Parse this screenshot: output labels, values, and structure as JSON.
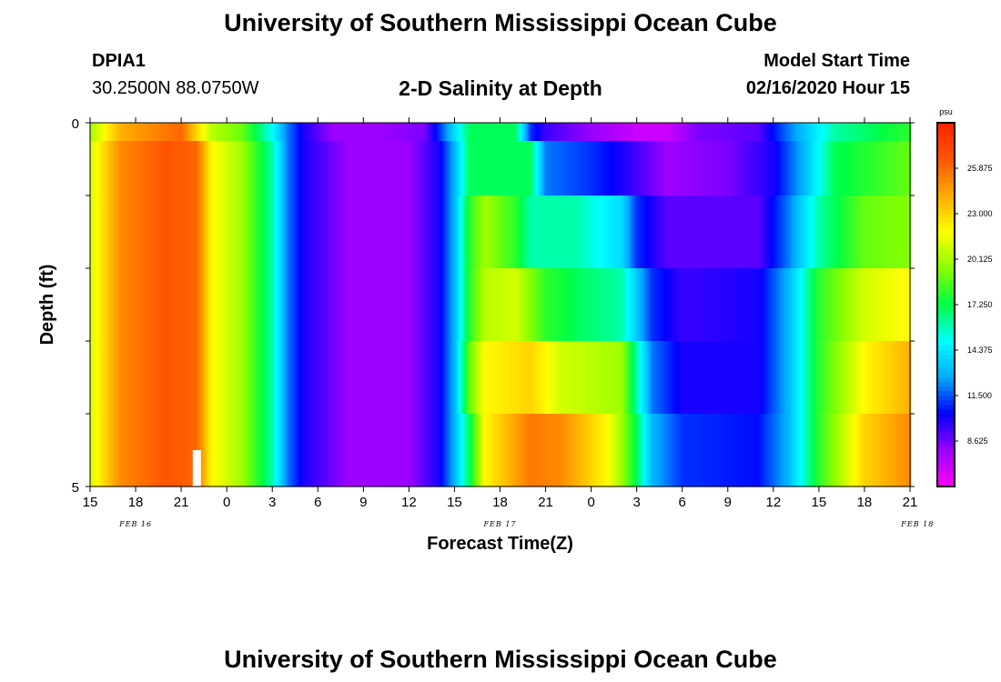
{
  "header": {
    "title": "University of Southern Mississippi Ocean Cube",
    "station_id": "DPIA1",
    "coords": "30.2500N 88.0750W",
    "chart_title": "2-D Salinity at Depth",
    "model_label": "Model Start Time",
    "model_time": "02/16/2020 Hour 15"
  },
  "footer": {
    "title": "University of Southern Mississippi Ocean Cube"
  },
  "chart_data": {
    "type": "heatmap",
    "xlabel": "Forecast Time(Z)",
    "ylabel": "Depth (ft)",
    "x_tick_labels": [
      "15",
      "18",
      "21",
      "0",
      "3",
      "6",
      "9",
      "12",
      "15",
      "18",
      "21",
      "0",
      "3",
      "6",
      "9",
      "12",
      "15",
      "18",
      "21"
    ],
    "date_labels": [
      "FEB 16",
      "FEB 17",
      "FEB 18"
    ],
    "y_tick_labels": [
      "0",
      "5"
    ],
    "ylim": [
      0,
      5
    ],
    "x_hours": [
      0,
      54
    ],
    "current_time_hour": 7,
    "colorbar": {
      "unit": "psu",
      "range": [
        5.75,
        28.75
      ],
      "tick_labels": [
        "25.875",
        "23.000",
        "20.125",
        "17.250",
        "14.375",
        "11.500",
        "8.625"
      ],
      "colors": [
        "#ff00ff",
        "#9b00ff",
        "#0000ff",
        "#00aaff",
        "#00ffff",
        "#00ff44",
        "#88ff00",
        "#ffff00",
        "#ffaa00",
        "#ff5500",
        "#ff2200"
      ]
    },
    "depth_levels": [
      0,
      0.5,
      1.5,
      2.5,
      3.5,
      4.5
    ],
    "series": [
      {
        "depth": 0,
        "keys": [
          [
            0,
            20
          ],
          [
            1,
            22
          ],
          [
            2,
            24
          ],
          [
            4,
            25
          ],
          [
            6,
            26
          ],
          [
            7,
            23
          ],
          [
            8,
            20.5
          ],
          [
            10,
            19
          ],
          [
            12,
            15
          ],
          [
            13,
            12
          ],
          [
            14,
            10
          ],
          [
            16,
            8
          ],
          [
            19,
            8
          ],
          [
            22,
            8.5
          ],
          [
            23,
            11
          ],
          [
            24,
            14
          ],
          [
            25,
            17
          ],
          [
            28,
            17
          ],
          [
            29,
            11
          ],
          [
            30,
            9.5
          ],
          [
            32,
            8.5
          ],
          [
            36,
            7
          ],
          [
            38,
            7
          ],
          [
            40,
            8.5
          ],
          [
            44,
            9
          ],
          [
            46,
            12
          ],
          [
            49,
            16
          ],
          [
            54,
            18
          ]
        ]
      },
      {
        "depth": 0.5,
        "keys": [
          [
            0,
            21
          ],
          [
            1,
            23
          ],
          [
            2,
            25
          ],
          [
            5,
            26.5
          ],
          [
            7,
            26
          ],
          [
            8,
            22
          ],
          [
            10,
            20
          ],
          [
            12,
            16
          ],
          [
            13,
            12
          ],
          [
            14,
            10
          ],
          [
            17,
            8
          ],
          [
            21,
            8
          ],
          [
            23,
            10
          ],
          [
            24,
            13
          ],
          [
            25,
            17
          ],
          [
            29,
            17
          ],
          [
            30,
            12
          ],
          [
            33,
            11
          ],
          [
            35,
            10
          ],
          [
            38,
            8
          ],
          [
            42,
            8.5
          ],
          [
            45,
            10
          ],
          [
            47,
            13
          ],
          [
            49,
            17
          ],
          [
            54,
            19
          ]
        ]
      },
      {
        "depth": 1.5,
        "keys": [
          [
            0,
            21
          ],
          [
            1,
            23
          ],
          [
            2,
            25
          ],
          [
            5,
            26.5
          ],
          [
            7,
            26
          ],
          [
            8,
            22
          ],
          [
            10,
            20
          ],
          [
            12,
            16
          ],
          [
            13,
            12
          ],
          [
            14,
            10
          ],
          [
            17,
            8
          ],
          [
            21,
            8
          ],
          [
            23,
            10
          ],
          [
            24,
            13
          ],
          [
            25,
            18
          ],
          [
            26,
            20
          ],
          [
            28,
            18
          ],
          [
            29,
            16
          ],
          [
            32,
            16
          ],
          [
            35,
            14
          ],
          [
            36,
            11
          ],
          [
            38,
            9
          ],
          [
            44,
            9
          ],
          [
            46,
            12
          ],
          [
            48,
            16
          ],
          [
            51,
            19
          ],
          [
            54,
            19.5
          ]
        ]
      },
      {
        "depth": 2.5,
        "keys": [
          [
            0,
            21
          ],
          [
            1,
            23
          ],
          [
            2,
            25
          ],
          [
            5,
            26.5
          ],
          [
            7,
            26
          ],
          [
            8,
            22
          ],
          [
            10,
            20
          ],
          [
            12,
            16
          ],
          [
            13,
            12
          ],
          [
            14,
            10
          ],
          [
            17,
            8
          ],
          [
            21,
            8
          ],
          [
            23,
            10
          ],
          [
            24,
            13
          ],
          [
            25,
            18
          ],
          [
            26,
            20.5
          ],
          [
            28,
            21
          ],
          [
            30,
            18
          ],
          [
            32,
            17
          ],
          [
            35,
            16
          ],
          [
            37,
            11
          ],
          [
            39,
            9.5
          ],
          [
            44,
            10
          ],
          [
            46,
            13
          ],
          [
            48,
            18
          ],
          [
            51,
            21
          ],
          [
            54,
            22
          ]
        ]
      },
      {
        "depth": 3.5,
        "keys": [
          [
            0,
            21
          ],
          [
            1,
            23
          ],
          [
            2,
            25
          ],
          [
            5,
            26.5
          ],
          [
            7,
            26
          ],
          [
            8,
            22
          ],
          [
            10,
            20
          ],
          [
            12,
            16
          ],
          [
            13,
            12
          ],
          [
            14,
            10
          ],
          [
            17,
            8
          ],
          [
            21,
            8
          ],
          [
            23,
            10
          ],
          [
            24,
            13
          ],
          [
            25,
            19
          ],
          [
            26,
            22
          ],
          [
            29,
            23
          ],
          [
            31,
            21
          ],
          [
            35,
            20
          ],
          [
            36,
            16
          ],
          [
            37,
            12
          ],
          [
            39,
            10
          ],
          [
            44,
            10
          ],
          [
            46,
            13
          ],
          [
            48,
            18
          ],
          [
            51,
            22
          ],
          [
            54,
            24
          ]
        ]
      },
      {
        "depth": 4.5,
        "keys": [
          [
            0,
            21
          ],
          [
            1,
            23
          ],
          [
            2,
            25
          ],
          [
            5,
            26.5
          ],
          [
            7,
            26
          ],
          [
            8,
            22
          ],
          [
            10,
            20
          ],
          [
            12,
            16
          ],
          [
            13,
            12
          ],
          [
            14,
            10
          ],
          [
            17,
            8
          ],
          [
            21,
            8
          ],
          [
            23,
            10
          ],
          [
            24,
            13
          ],
          [
            25,
            17
          ],
          [
            26,
            22
          ],
          [
            29,
            25.5
          ],
          [
            31,
            25
          ],
          [
            34,
            22
          ],
          [
            35,
            20
          ],
          [
            36,
            17
          ],
          [
            37,
            13
          ],
          [
            39,
            11
          ],
          [
            44,
            10.5
          ],
          [
            46,
            13
          ],
          [
            48,
            18
          ],
          [
            51,
            23
          ],
          [
            54,
            25
          ]
        ]
      }
    ]
  }
}
